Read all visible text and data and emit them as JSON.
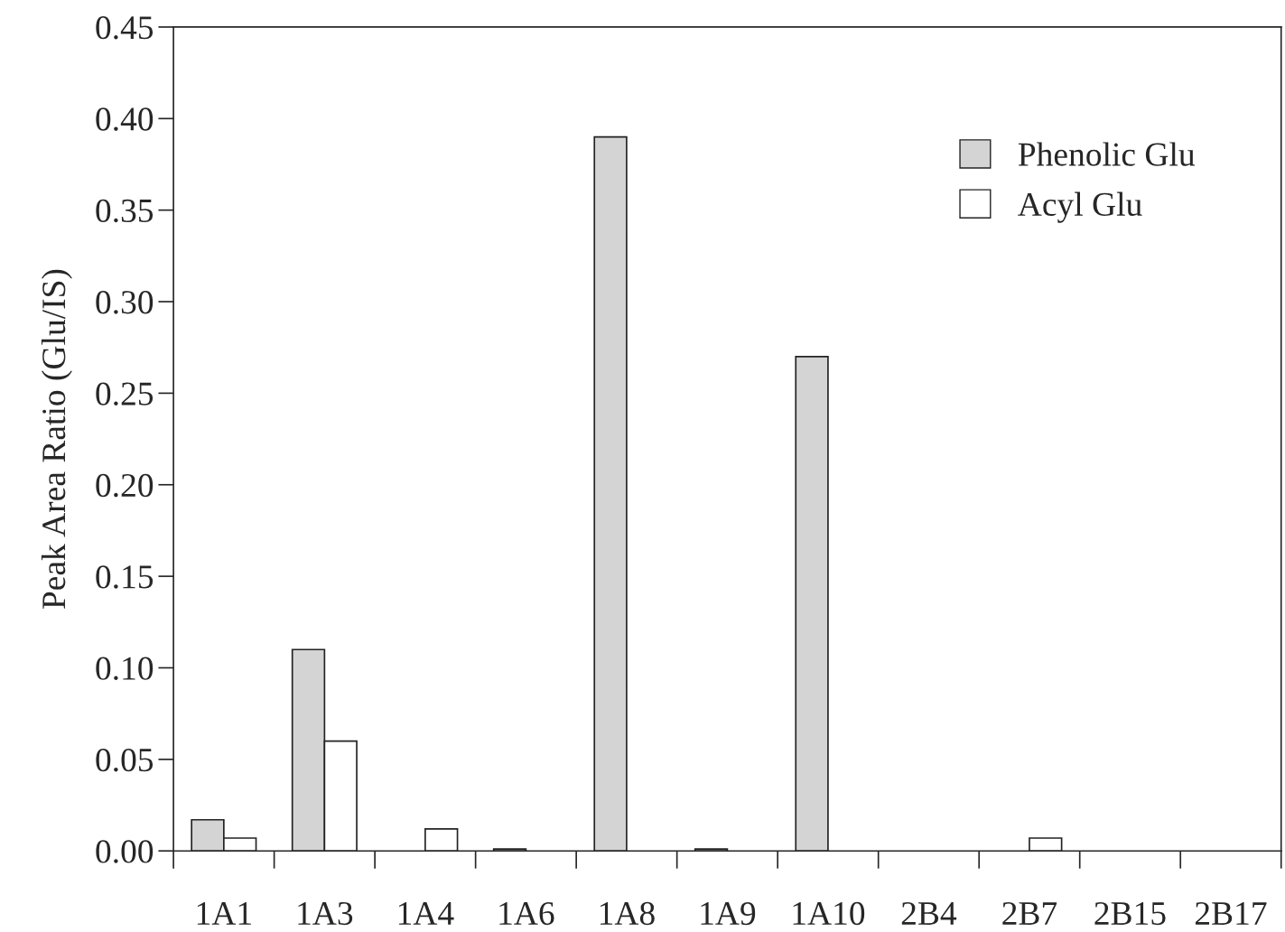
{
  "chart_data": {
    "type": "bar",
    "ylabel": "Peak Area Ratio (Glu/IS)",
    "categories": [
      "1A1",
      "1A3",
      "1A4",
      "1A6",
      "1A8",
      "1A9",
      "1A10",
      "2B4",
      "2B7",
      "2B15",
      "2B17"
    ],
    "series": [
      {
        "name": "Phenolic Glu",
        "color": "#d4d4d4",
        "values": [
          0.017,
          0.11,
          null,
          0.001,
          0.39,
          0.001,
          0.27,
          null,
          null,
          null,
          null
        ]
      },
      {
        "name": "Acyl Glu",
        "color": "#ffffff",
        "values": [
          0.007,
          0.06,
          0.012,
          null,
          null,
          null,
          null,
          null,
          0.007,
          null,
          null
        ]
      }
    ],
    "ylim": [
      0,
      0.45
    ],
    "yticks": [
      {
        "value": 0,
        "label": "0.00"
      },
      {
        "value": 0.05,
        "label": "0.05"
      },
      {
        "value": 0.1,
        "label": "0.10"
      },
      {
        "value": 0.15,
        "label": "0.15"
      },
      {
        "value": 0.2,
        "label": "0.20"
      },
      {
        "value": 0.25,
        "label": "0.25"
      },
      {
        "value": 0.3,
        "label": "0.30"
      },
      {
        "value": 0.35,
        "label": "0.35"
      },
      {
        "value": 0.4,
        "label": "0.40"
      },
      {
        "value": 0.45,
        "label": "0.45"
      }
    ],
    "grid": false,
    "legend": "top right"
  }
}
